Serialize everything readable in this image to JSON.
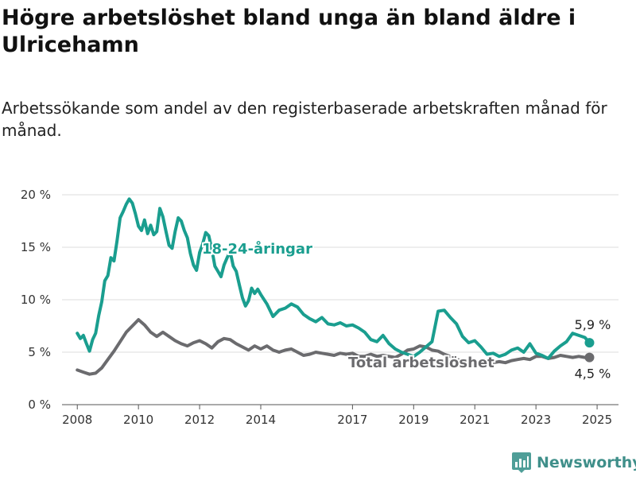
{
  "title": "Högre arbetslöshet bland unga än bland äldre i Ulricehamn",
  "subtitle": "Arbetssökande som andel av den registerbaserade arbetskraften månad för månad.",
  "brand": {
    "name": "Newsworthy",
    "icon": "newsworthy-logo-icon",
    "color": "#3f8f8a"
  },
  "chart_data": {
    "type": "line",
    "x_unit": "year",
    "x_ticks": [
      2008,
      2010,
      2012,
      2014,
      2017,
      2019,
      2021,
      2023,
      2025
    ],
    "x_tick_labels": [
      "2008",
      "2010",
      "2012",
      "2014",
      "2017",
      "2019",
      "2021",
      "2023",
      "2025"
    ],
    "xlim": [
      2007.5,
      2025.7
    ],
    "y_ticks": [
      0,
      5,
      10,
      15,
      20
    ],
    "y_tick_labels": [
      "0 %",
      "5 %",
      "10 %",
      "15 %",
      "20 %"
    ],
    "ylim": [
      0,
      20
    ],
    "grid": "horizontal",
    "series": [
      {
        "name": "18-24-åringar",
        "color": "#1a9e8f",
        "end_label": "5,9 %",
        "points": [
          [
            2008.0,
            6.8
          ],
          [
            2008.1,
            6.3
          ],
          [
            2008.2,
            6.6
          ],
          [
            2008.3,
            5.8
          ],
          [
            2008.4,
            5.1
          ],
          [
            2008.5,
            6.2
          ],
          [
            2008.6,
            6.8
          ],
          [
            2008.7,
            8.5
          ],
          [
            2008.8,
            9.8
          ],
          [
            2008.9,
            11.8
          ],
          [
            2009.0,
            12.3
          ],
          [
            2009.1,
            14.0
          ],
          [
            2009.2,
            13.7
          ],
          [
            2009.3,
            15.6
          ],
          [
            2009.4,
            17.8
          ],
          [
            2009.5,
            18.4
          ],
          [
            2009.6,
            19.1
          ],
          [
            2009.7,
            19.6
          ],
          [
            2009.8,
            19.2
          ],
          [
            2009.9,
            18.2
          ],
          [
            2010.0,
            17.0
          ],
          [
            2010.1,
            16.6
          ],
          [
            2010.2,
            17.6
          ],
          [
            2010.3,
            16.3
          ],
          [
            2010.4,
            17.1
          ],
          [
            2010.5,
            16.2
          ],
          [
            2010.6,
            16.5
          ],
          [
            2010.7,
            18.7
          ],
          [
            2010.8,
            17.9
          ],
          [
            2010.9,
            16.5
          ],
          [
            2011.0,
            15.2
          ],
          [
            2011.1,
            14.9
          ],
          [
            2011.2,
            16.5
          ],
          [
            2011.3,
            17.8
          ],
          [
            2011.4,
            17.5
          ],
          [
            2011.5,
            16.6
          ],
          [
            2011.6,
            15.9
          ],
          [
            2011.7,
            14.4
          ],
          [
            2011.8,
            13.3
          ],
          [
            2011.9,
            12.8
          ],
          [
            2012.0,
            14.5
          ],
          [
            2012.1,
            15.3
          ],
          [
            2012.2,
            16.4
          ],
          [
            2012.3,
            16.1
          ],
          [
            2012.4,
            14.8
          ],
          [
            2012.5,
            13.2
          ],
          [
            2012.6,
            12.7
          ],
          [
            2012.7,
            12.2
          ],
          [
            2012.8,
            13.3
          ],
          [
            2012.9,
            14.0
          ],
          [
            2013.0,
            14.6
          ],
          [
            2013.1,
            13.2
          ],
          [
            2013.2,
            12.7
          ],
          [
            2013.3,
            11.4
          ],
          [
            2013.4,
            10.2
          ],
          [
            2013.5,
            9.4
          ],
          [
            2013.6,
            9.9
          ],
          [
            2013.7,
            11.1
          ],
          [
            2013.8,
            10.6
          ],
          [
            2013.9,
            11.0
          ],
          [
            2014.0,
            10.5
          ],
          [
            2014.2,
            9.6
          ],
          [
            2014.4,
            8.4
          ],
          [
            2014.6,
            9.0
          ],
          [
            2014.8,
            9.2
          ],
          [
            2015.0,
            9.6
          ],
          [
            2015.2,
            9.3
          ],
          [
            2015.4,
            8.6
          ],
          [
            2015.6,
            8.2
          ],
          [
            2015.8,
            7.9
          ],
          [
            2016.0,
            8.3
          ],
          [
            2016.2,
            7.7
          ],
          [
            2016.4,
            7.6
          ],
          [
            2016.6,
            7.8
          ],
          [
            2016.8,
            7.5
          ],
          [
            2017.0,
            7.6
          ],
          [
            2017.2,
            7.3
          ],
          [
            2017.4,
            6.9
          ],
          [
            2017.6,
            6.2
          ],
          [
            2017.8,
            6.0
          ],
          [
            2018.0,
            6.6
          ],
          [
            2018.2,
            5.8
          ],
          [
            2018.4,
            5.3
          ],
          [
            2018.6,
            5.0
          ],
          [
            2018.8,
            4.8
          ],
          [
            2019.0,
            4.6
          ],
          [
            2019.2,
            5.0
          ],
          [
            2019.4,
            5.5
          ],
          [
            2019.6,
            6.0
          ],
          [
            2019.8,
            8.9
          ],
          [
            2020.0,
            9.0
          ],
          [
            2020.2,
            8.3
          ],
          [
            2020.4,
            7.7
          ],
          [
            2020.6,
            6.5
          ],
          [
            2020.8,
            5.9
          ],
          [
            2021.0,
            6.1
          ],
          [
            2021.2,
            5.5
          ],
          [
            2021.4,
            4.8
          ],
          [
            2021.6,
            4.9
          ],
          [
            2021.8,
            4.6
          ],
          [
            2022.0,
            4.8
          ],
          [
            2022.2,
            5.2
          ],
          [
            2022.4,
            5.4
          ],
          [
            2022.6,
            5.0
          ],
          [
            2022.8,
            5.8
          ],
          [
            2023.0,
            4.9
          ],
          [
            2023.2,
            4.7
          ],
          [
            2023.4,
            4.4
          ],
          [
            2023.6,
            5.1
          ],
          [
            2023.8,
            5.6
          ],
          [
            2024.0,
            6.0
          ],
          [
            2024.2,
            6.8
          ],
          [
            2024.4,
            6.6
          ],
          [
            2024.6,
            6.4
          ],
          [
            2024.75,
            5.9
          ]
        ]
      },
      {
        "name": "Total arbetslöshet",
        "color": "#6b6b6e",
        "end_label": "4,5 %",
        "points": [
          [
            2008.0,
            3.3
          ],
          [
            2008.2,
            3.1
          ],
          [
            2008.4,
            2.9
          ],
          [
            2008.6,
            3.0
          ],
          [
            2008.8,
            3.5
          ],
          [
            2009.0,
            4.3
          ],
          [
            2009.2,
            5.1
          ],
          [
            2009.4,
            6.0
          ],
          [
            2009.6,
            6.9
          ],
          [
            2009.8,
            7.5
          ],
          [
            2010.0,
            8.1
          ],
          [
            2010.2,
            7.6
          ],
          [
            2010.4,
            6.9
          ],
          [
            2010.6,
            6.5
          ],
          [
            2010.8,
            6.9
          ],
          [
            2011.0,
            6.5
          ],
          [
            2011.2,
            6.1
          ],
          [
            2011.4,
            5.8
          ],
          [
            2011.6,
            5.6
          ],
          [
            2011.8,
            5.9
          ],
          [
            2012.0,
            6.1
          ],
          [
            2012.2,
            5.8
          ],
          [
            2012.4,
            5.4
          ],
          [
            2012.6,
            6.0
          ],
          [
            2012.8,
            6.3
          ],
          [
            2013.0,
            6.2
          ],
          [
            2013.2,
            5.8
          ],
          [
            2013.4,
            5.5
          ],
          [
            2013.6,
            5.2
          ],
          [
            2013.8,
            5.6
          ],
          [
            2014.0,
            5.3
          ],
          [
            2014.2,
            5.6
          ],
          [
            2014.4,
            5.2
          ],
          [
            2014.6,
            5.0
          ],
          [
            2014.8,
            5.2
          ],
          [
            2015.0,
            5.3
          ],
          [
            2015.2,
            5.0
          ],
          [
            2015.4,
            4.7
          ],
          [
            2015.6,
            4.8
          ],
          [
            2015.8,
            5.0
          ],
          [
            2016.0,
            4.9
          ],
          [
            2016.2,
            4.8
          ],
          [
            2016.4,
            4.7
          ],
          [
            2016.6,
            4.9
          ],
          [
            2016.8,
            4.8
          ],
          [
            2017.0,
            4.9
          ],
          [
            2017.2,
            4.6
          ],
          [
            2017.4,
            4.6
          ],
          [
            2017.6,
            4.8
          ],
          [
            2017.8,
            4.6
          ],
          [
            2018.0,
            4.7
          ],
          [
            2018.2,
            4.6
          ],
          [
            2018.4,
            4.5
          ],
          [
            2018.6,
            4.8
          ],
          [
            2018.8,
            5.2
          ],
          [
            2019.0,
            5.3
          ],
          [
            2019.2,
            5.6
          ],
          [
            2019.4,
            5.5
          ],
          [
            2019.6,
            5.2
          ],
          [
            2019.8,
            5.1
          ],
          [
            2020.0,
            4.8
          ],
          [
            2020.2,
            4.6
          ],
          [
            2020.4,
            4.3
          ],
          [
            2020.6,
            4.2
          ],
          [
            2020.8,
            4.0
          ],
          [
            2021.0,
            4.1
          ],
          [
            2021.2,
            4.0
          ],
          [
            2021.4,
            3.9
          ],
          [
            2021.6,
            4.0
          ],
          [
            2021.8,
            4.1
          ],
          [
            2022.0,
            4.0
          ],
          [
            2022.2,
            4.2
          ],
          [
            2022.4,
            4.3
          ],
          [
            2022.6,
            4.4
          ],
          [
            2022.8,
            4.3
          ],
          [
            2023.0,
            4.6
          ],
          [
            2023.2,
            4.6
          ],
          [
            2023.4,
            4.4
          ],
          [
            2023.6,
            4.5
          ],
          [
            2023.8,
            4.7
          ],
          [
            2024.0,
            4.6
          ],
          [
            2024.2,
            4.5
          ],
          [
            2024.4,
            4.6
          ],
          [
            2024.6,
            4.5
          ],
          [
            2024.75,
            4.5
          ]
        ]
      }
    ]
  }
}
